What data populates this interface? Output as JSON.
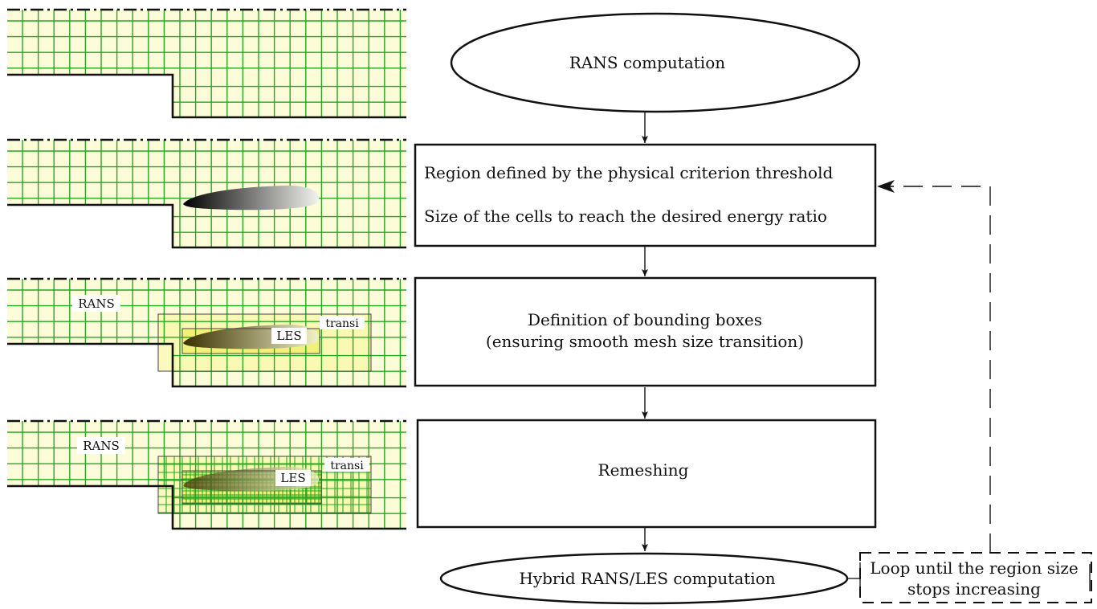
{
  "flow_steps": [
    {
      "id": "rans",
      "lines": [
        "RANS computation"
      ]
    },
    {
      "id": "region",
      "lines": [
        "Region defined by the physical criterion threshold",
        "Size of the cells to reach the desired energy ratio"
      ]
    },
    {
      "id": "bbox",
      "lines": [
        "Definition of bounding boxes",
        "(ensuring smooth mesh size transition)"
      ]
    },
    {
      "id": "remesh",
      "lines": [
        "Remeshing"
      ]
    },
    {
      "id": "hybrid",
      "lines": [
        "Hybrid RANS/LES computation"
      ]
    }
  ],
  "loop_note": {
    "lines": [
      "Loop until the region size",
      "stops increasing"
    ]
  },
  "panel_labels": {
    "rans": "RANS",
    "les": "LES",
    "transi": "transi"
  },
  "colors": {
    "grid": "#22aa22",
    "fluid_fill": "#fcfcd8",
    "transition_fill": "#f8f8a8",
    "les_fill": "#eeee70",
    "line": "#111111"
  }
}
